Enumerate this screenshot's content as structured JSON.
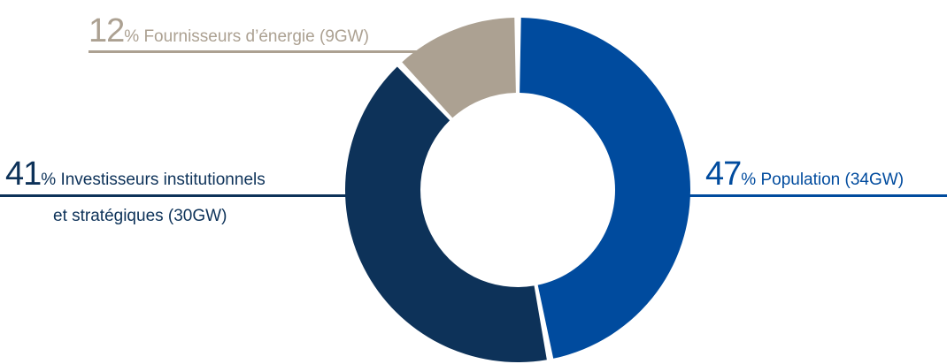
{
  "chart_data": {
    "type": "pie",
    "variant": "donut",
    "unit": "%",
    "categories": [
      "Population (34GW)",
      "Investisseurs institutionnels et stratégiques (30GW)",
      "Fournisseurs d’énergie (9GW)"
    ],
    "values": [
      47,
      41,
      12
    ],
    "series": [
      {
        "name": "Population",
        "value": 47,
        "label_pct": "47",
        "label_text": "% Population (34GW)",
        "color": "#004b9e"
      },
      {
        "name": "Investisseurs institutionnels et stratégiques",
        "value": 41,
        "label_pct": "41",
        "label_text_line1": "% Investisseurs institutionnels",
        "label_text_line2": "et stratégiques (30GW)",
        "color": "#0d3259"
      },
      {
        "name": "Fournisseurs d’énergie",
        "value": 12,
        "label_pct": "12",
        "label_text": "% Fournisseurs d’énergie (9GW)",
        "color": "#aca192"
      }
    ],
    "legend": "none",
    "grid": false
  }
}
